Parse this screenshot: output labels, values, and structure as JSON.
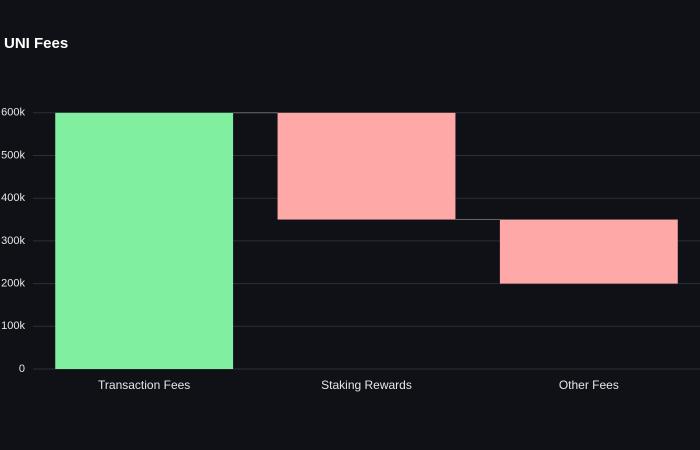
{
  "chart_data": {
    "type": "waterfall",
    "title": "UNI Fees",
    "categories": [
      "Transaction Fees",
      "Staking Rewards",
      "Other Fees"
    ],
    "values": [
      600000,
      -250000,
      -150000
    ],
    "colors": {
      "increase": "#80f0a0",
      "decrease": "#ffa8a8"
    },
    "ylim": [
      0,
      630000
    ],
    "yticks": [
      0,
      {
        "value": 100000,
        "label": "100k"
      },
      {
        "value": 200000,
        "label": "200k"
      },
      {
        "value": 300000,
        "label": "300k"
      },
      {
        "value": 400000,
        "label": "400k"
      },
      {
        "value": 500000,
        "label": "500k"
      },
      {
        "value": 600000,
        "label": "600k"
      }
    ],
    "grid": true
  }
}
